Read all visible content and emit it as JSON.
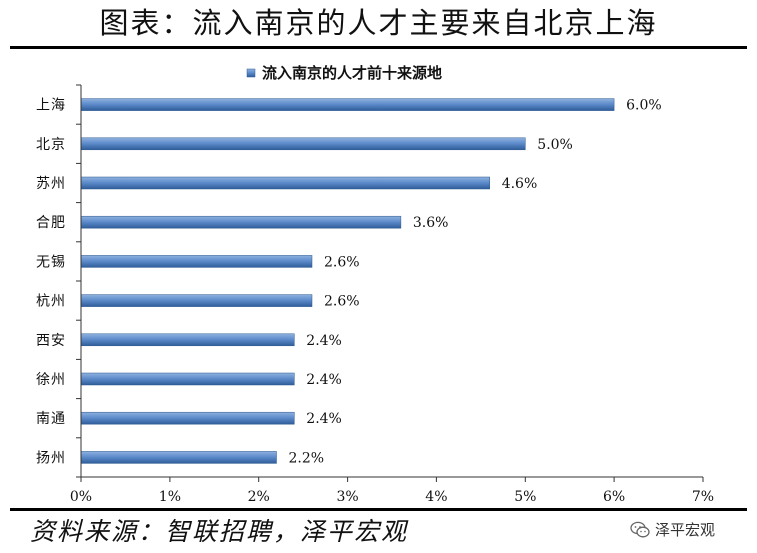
{
  "header": {
    "title": "图表：流入南京的人才主要来自北京上海"
  },
  "footer": {
    "source": "资料来源：智联招聘，泽平宏观",
    "watermark": "泽平宏观"
  },
  "chart_data": {
    "type": "bar",
    "orientation": "horizontal",
    "title": "",
    "xlabel": "",
    "ylabel": "",
    "categories": [
      "上海",
      "北京",
      "苏州",
      "合肥",
      "无锡",
      "杭州",
      "西安",
      "徐州",
      "南通",
      "扬州"
    ],
    "series": [
      {
        "name": "流入南京的人才前十来源地",
        "values": [
          6.0,
          5.0,
          4.6,
          3.6,
          2.6,
          2.6,
          2.4,
          2.4,
          2.4,
          2.2
        ],
        "labels": [
          "6.0%",
          "5.0%",
          "4.6%",
          "3.6%",
          "2.6%",
          "2.6%",
          "2.4%",
          "2.4%",
          "2.4%",
          "2.2%"
        ],
        "color": "#4f7fbf"
      }
    ],
    "xlim": [
      0,
      7
    ],
    "xticks": [
      0,
      1,
      2,
      3,
      4,
      5,
      6,
      7
    ],
    "xtick_labels": [
      "0%",
      "1%",
      "2%",
      "3%",
      "4%",
      "5%",
      "6%",
      "7%"
    ],
    "grid": false,
    "legend": "top-center"
  }
}
